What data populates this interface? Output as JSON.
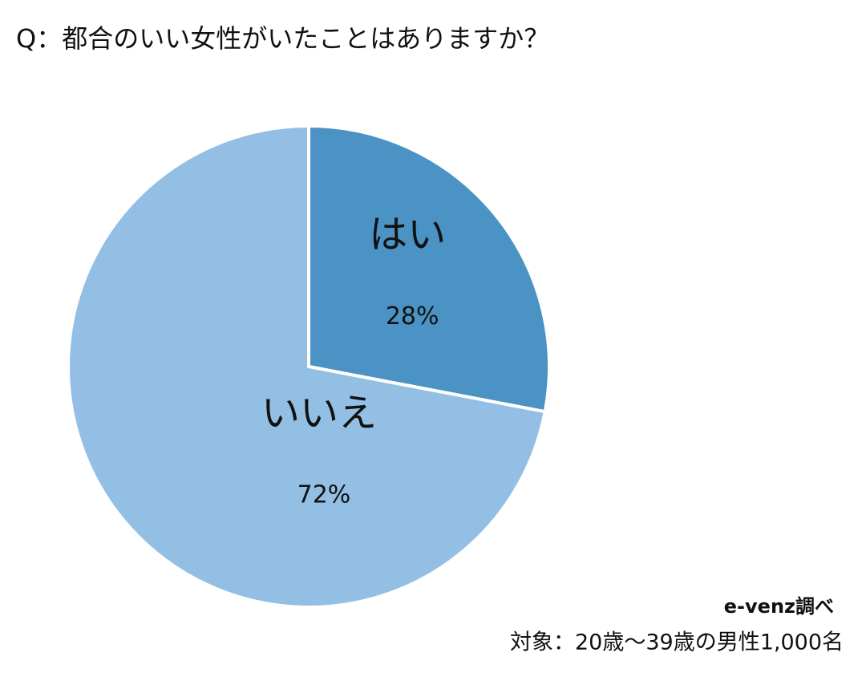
{
  "chart_data": {
    "type": "pie",
    "title": "Q：都合のいい女性がいたことはありますか？",
    "categories": [
      "はい",
      "いいえ"
    ],
    "values": [
      28,
      72
    ],
    "value_labels": [
      "28%",
      "72%"
    ],
    "colors": [
      "#4a93c4",
      "#93bfe5"
    ],
    "source": "e-venz調べ",
    "note": "対象：20歳～39歳の男性1,000名"
  }
}
